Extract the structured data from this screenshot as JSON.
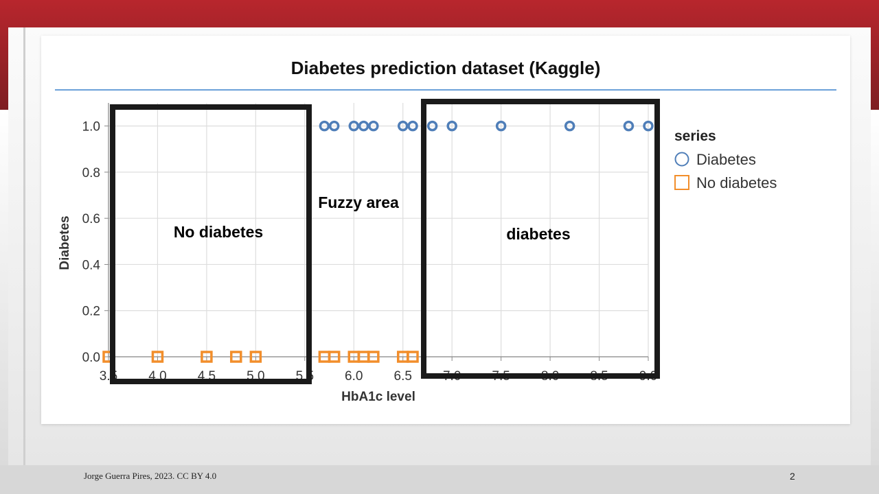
{
  "slide": {
    "footer": "Jorge Guerra Pires, 2023. CC BY 4.0",
    "page_number": "2"
  },
  "annotations": {
    "no_diabetes_box": "No diabetes",
    "fuzzy_area": "Fuzzy area",
    "diabetes_box": "diabetes"
  },
  "chart_data": {
    "type": "scatter",
    "title": "Diabetes prediction dataset (Kaggle)",
    "xlabel": "HbA1c level",
    "ylabel": "Diabetes",
    "xlim": [
      3.5,
      9.0
    ],
    "ylim": [
      0.0,
      1.1
    ],
    "x_ticks": [
      "3.5",
      "4.0",
      "4.5",
      "5.0",
      "5.5",
      "6.0",
      "6.5",
      "7.0",
      "7.5",
      "8.0",
      "8.5",
      "9.0"
    ],
    "y_ticks": [
      "0.0",
      "0.2",
      "0.4",
      "0.6",
      "0.8",
      "1.0"
    ],
    "grid": true,
    "legend": {
      "title": "series",
      "position": "right"
    },
    "series": [
      {
        "name": "Diabetes",
        "marker": "circle",
        "color": "#4f7eb8",
        "x": [
          5.7,
          5.8,
          6.0,
          6.1,
          6.2,
          6.5,
          6.6,
          6.8,
          7.0,
          7.5,
          8.2,
          8.8,
          9.0
        ],
        "y": [
          1,
          1,
          1,
          1,
          1,
          1,
          1,
          1,
          1,
          1,
          1,
          1,
          1
        ]
      },
      {
        "name": "No diabetes",
        "marker": "square",
        "color": "#f28e2b",
        "x": [
          3.5,
          4.0,
          4.5,
          4.8,
          5.0,
          5.7,
          5.8,
          6.0,
          6.1,
          6.2,
          6.5,
          6.6
        ],
        "y": [
          0,
          0,
          0,
          0,
          0,
          0,
          0,
          0,
          0,
          0,
          0,
          0
        ]
      }
    ]
  }
}
